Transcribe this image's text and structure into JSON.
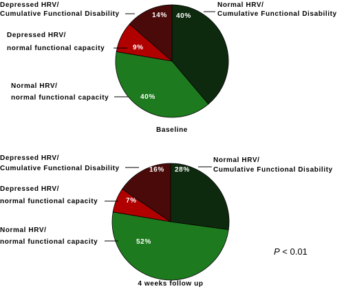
{
  "colors": {
    "normal_hrv_cumulative": "#0e2a0e",
    "normal_hrv_normal_capacity": "#1e7a1e",
    "depressed_hrv_normal_capacity": "#b00000",
    "depressed_hrv_cumulative": "#4a0a0a"
  },
  "chart_data": [
    {
      "type": "pie",
      "title": "Baseline",
      "slices": [
        {
          "label_line1": "Normal HRV/",
          "label_line2": "Cumulative Functional Disability",
          "value": 40,
          "value_label": "40%",
          "color": "#0e2a0e"
        },
        {
          "label_line1": "Normal HRV/",
          "label_line2": "normal functional capacity",
          "value": 40,
          "value_label": "40%",
          "color": "#1e7a1e"
        },
        {
          "label_line1": "Depressed HRV/",
          "label_line2": "normal functional capacity",
          "value": 9,
          "value_label": "9%",
          "color": "#b00000"
        },
        {
          "label_line1": "Depressed HRV/",
          "label_line2": "Cumulative Functional Disability",
          "value": 14,
          "value_label": "14%",
          "color": "#4a0a0a"
        }
      ]
    },
    {
      "type": "pie",
      "title": "4 weeks follow up",
      "slices": [
        {
          "label_line1": "Normal HRV/",
          "label_line2": "Cumulative Functional Disability",
          "value": 28,
          "value_label": "28%",
          "color": "#0e2a0e"
        },
        {
          "label_line1": "Normal HRV/",
          "label_line2": "normal functional capacity",
          "value": 52,
          "value_label": "52%",
          "color": "#1e7a1e"
        },
        {
          "label_line1": "Depressed HRV/",
          "label_line2": "normal functional capacity",
          "value": 7,
          "value_label": "7%",
          "color": "#b00000"
        },
        {
          "label_line1": "Depressed HRV/",
          "label_line2": "Cumulative Functional Disability",
          "value": 16,
          "value_label": "16%",
          "color": "#4a0a0a"
        }
      ]
    }
  ],
  "annotation": {
    "p_symbol": "P",
    "p_rest": " < 0.01"
  }
}
